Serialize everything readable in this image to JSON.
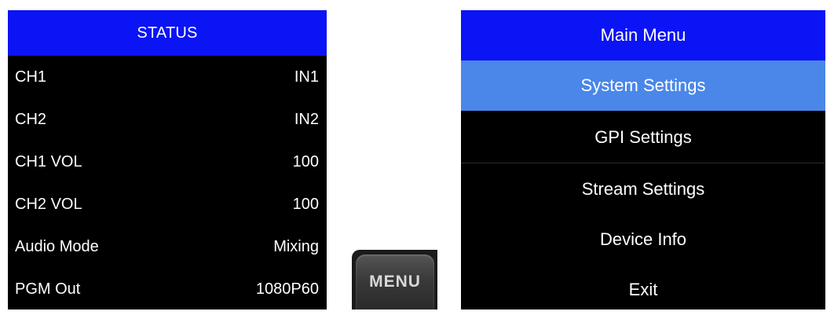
{
  "status": {
    "title": "STATUS",
    "rows": [
      {
        "label": "CH1",
        "value": "IN1"
      },
      {
        "label": "CH2",
        "value": "IN2"
      },
      {
        "label": "CH1 VOL",
        "value": "100"
      },
      {
        "label": "CH2 VOL",
        "value": "100"
      },
      {
        "label": "Audio Mode",
        "value": "Mixing"
      },
      {
        "label": "PGM Out",
        "value": "1080P60"
      }
    ]
  },
  "menu_key": {
    "label": "MENU"
  },
  "main_menu": {
    "title": "Main Menu",
    "selected_index": 0,
    "items": [
      {
        "label": "System Settings"
      },
      {
        "label": "GPI Settings"
      },
      {
        "label": "Stream Settings"
      },
      {
        "label": "Device Info"
      },
      {
        "label": "Exit"
      }
    ]
  },
  "colors": {
    "header_blue": "#0b14f4",
    "selected_blue": "#4a87e8",
    "panel_bg": "#000000",
    "text": "#ffffff"
  }
}
